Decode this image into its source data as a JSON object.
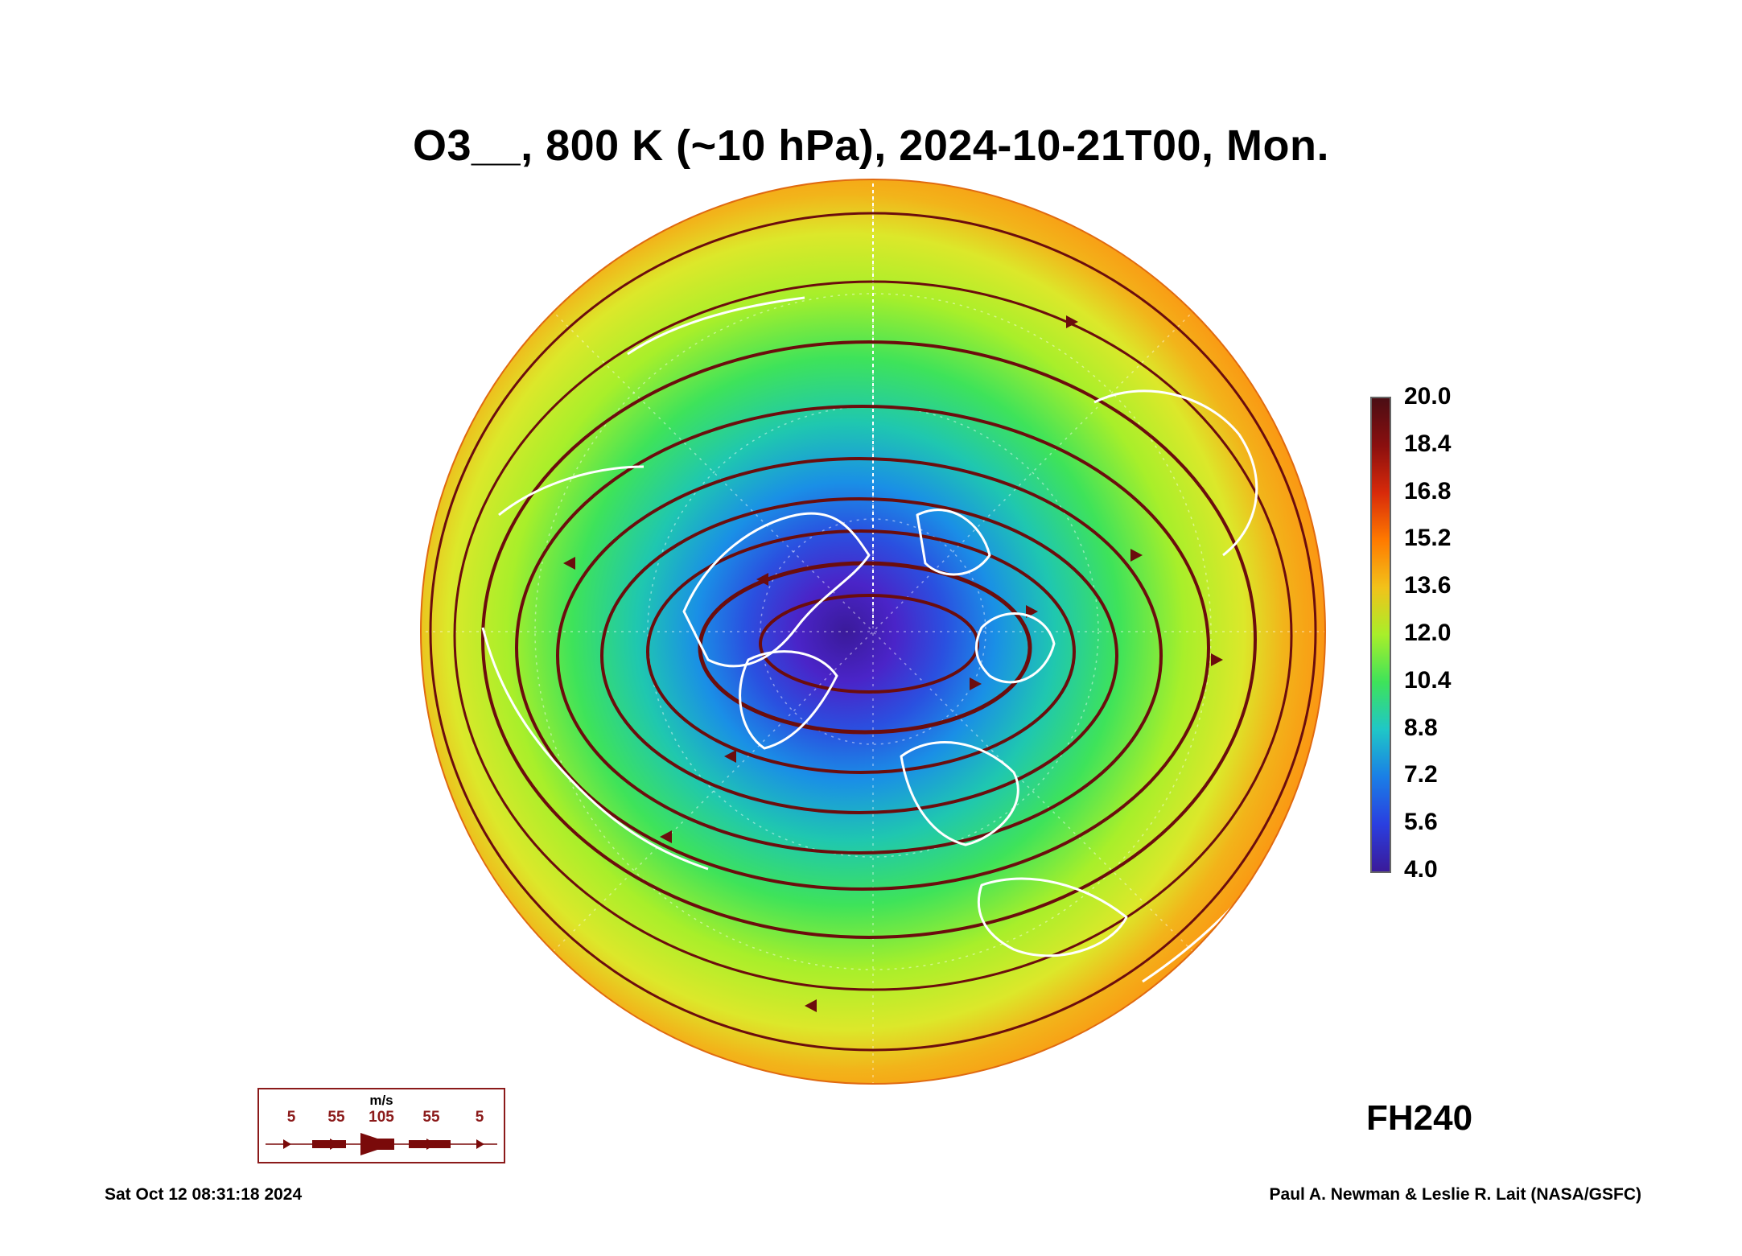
{
  "title": "O3__, 800 K (~10 hPa), 2024-10-21T00, Mon.",
  "forecast_label": "FH240",
  "colorbar": {
    "labels": [
      "20.0",
      "18.4",
      "16.8",
      "15.2",
      "13.6",
      "12.0",
      "10.4",
      "8.8",
      "7.2",
      "5.6",
      "4.0"
    ],
    "colors": [
      "#4b0e14",
      "#8a0f0f",
      "#d82a0a",
      "#ff7a00",
      "#f2c21a",
      "#a8ef2a",
      "#3ee35a",
      "#1fc7c7",
      "#1a7fe6",
      "#2a3fe0",
      "#3a1a9a"
    ]
  },
  "map": {
    "projection": "north polar stereographic",
    "vortex_color": "#4a24c8",
    "streamline_color": "#6b0d0d",
    "coastline_color": "#ffffff"
  },
  "wind_legend": {
    "unit": "m/s",
    "values": [
      "5",
      "55",
      "105",
      "55",
      "5"
    ],
    "color": "#7a0a0a"
  },
  "footer": {
    "timestamp": "Sat Oct 12 08:31:18 2024",
    "credit": "Paul A. Newman & Leslie R. Lait (NASA/GSFC)"
  }
}
